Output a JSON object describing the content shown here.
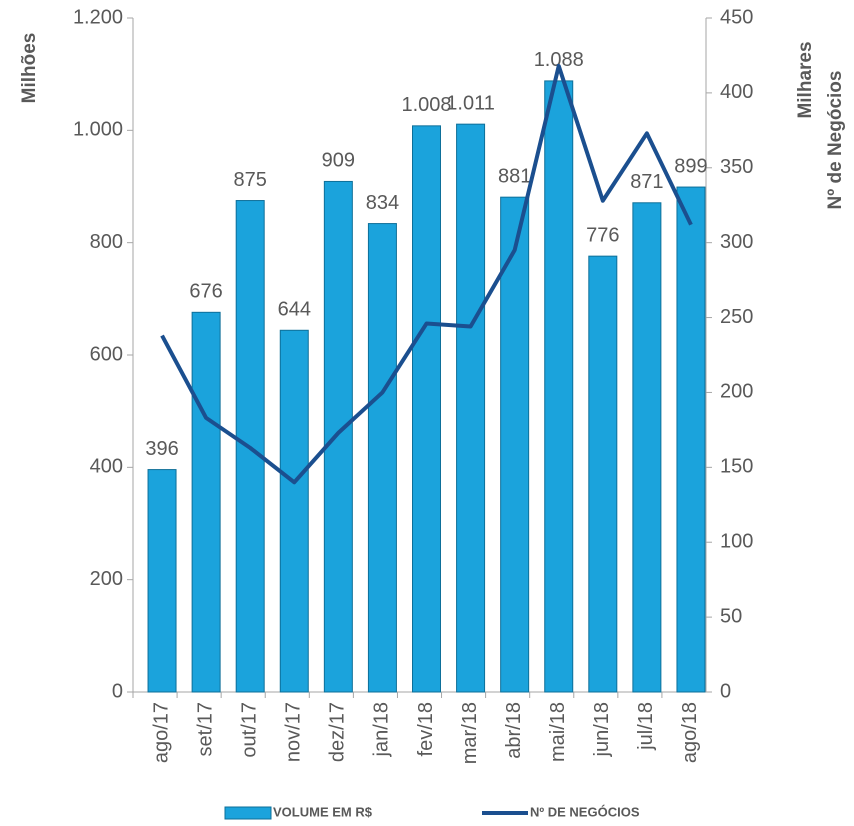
{
  "chart_data": {
    "type": "bar",
    "categories": [
      "ago/17",
      "set/17",
      "out/17",
      "nov/17",
      "dez/17",
      "jan/18",
      "fev/18",
      "mar/18",
      "abr/18",
      "mai/18",
      "jun/18",
      "jul/18",
      "ago/18"
    ],
    "series": [
      {
        "name": "VOLUME EM R$",
        "type": "bar",
        "axis": "y",
        "color": "#1ba3dc",
        "values": [
          396,
          676,
          875,
          644,
          909,
          834,
          1008,
          1011,
          881,
          1088,
          776,
          871,
          899
        ],
        "value_labels": [
          "396",
          "676",
          "875",
          "644",
          "909",
          "834",
          "1.008",
          "1.011",
          "881",
          "1.088",
          "776",
          "871",
          "899"
        ]
      },
      {
        "name": "Nº DE NEGÓCIOS",
        "type": "line",
        "axis": "y2",
        "color": "#1b4f8f",
        "values": [
          238,
          183,
          163,
          140,
          173,
          200,
          246,
          244,
          295,
          418,
          328,
          373,
          312
        ]
      }
    ],
    "y_label": "Milhões",
    "y2_label": [
      "Milhares",
      "Nº de Negócios"
    ],
    "ylim": [
      0,
      1200
    ],
    "yticks": [
      0,
      200,
      400,
      600,
      800,
      {
        "value": 1000,
        "label": "1.000"
      },
      {
        "value": 1200,
        "label": "1.200"
      }
    ],
    "y2lim": [
      0,
      450
    ],
    "y2ticks": [
      0,
      50,
      100,
      150,
      200,
      250,
      300,
      350,
      400,
      450
    ],
    "grid": false,
    "legend": "bottom"
  }
}
